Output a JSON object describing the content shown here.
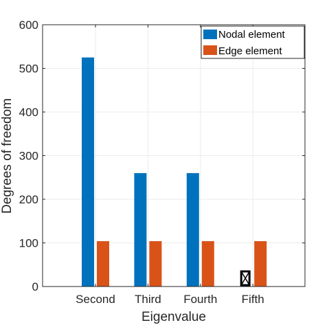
{
  "chart_data": {
    "type": "bar",
    "categories": [
      "Second",
      "Third",
      "Fourth",
      "Fifth"
    ],
    "series": [
      {
        "name": "Nodal element",
        "color": "#0072BD",
        "values": [
          525,
          260,
          260,
          null
        ]
      },
      {
        "name": "Edge element",
        "color": "#D95319",
        "values": [
          104,
          104,
          104,
          104
        ]
      }
    ],
    "missing_marker": {
      "series": 0,
      "category": "Fifth",
      "icon": "crossed-box-icon"
    },
    "xlabel": "Eigenvalue",
    "ylabel": "Degrees of freedom",
    "ylim": [
      0,
      600
    ],
    "yticks": [
      0,
      100,
      200,
      300,
      400,
      500,
      600
    ],
    "grid": true,
    "legend_position": "top-right"
  }
}
